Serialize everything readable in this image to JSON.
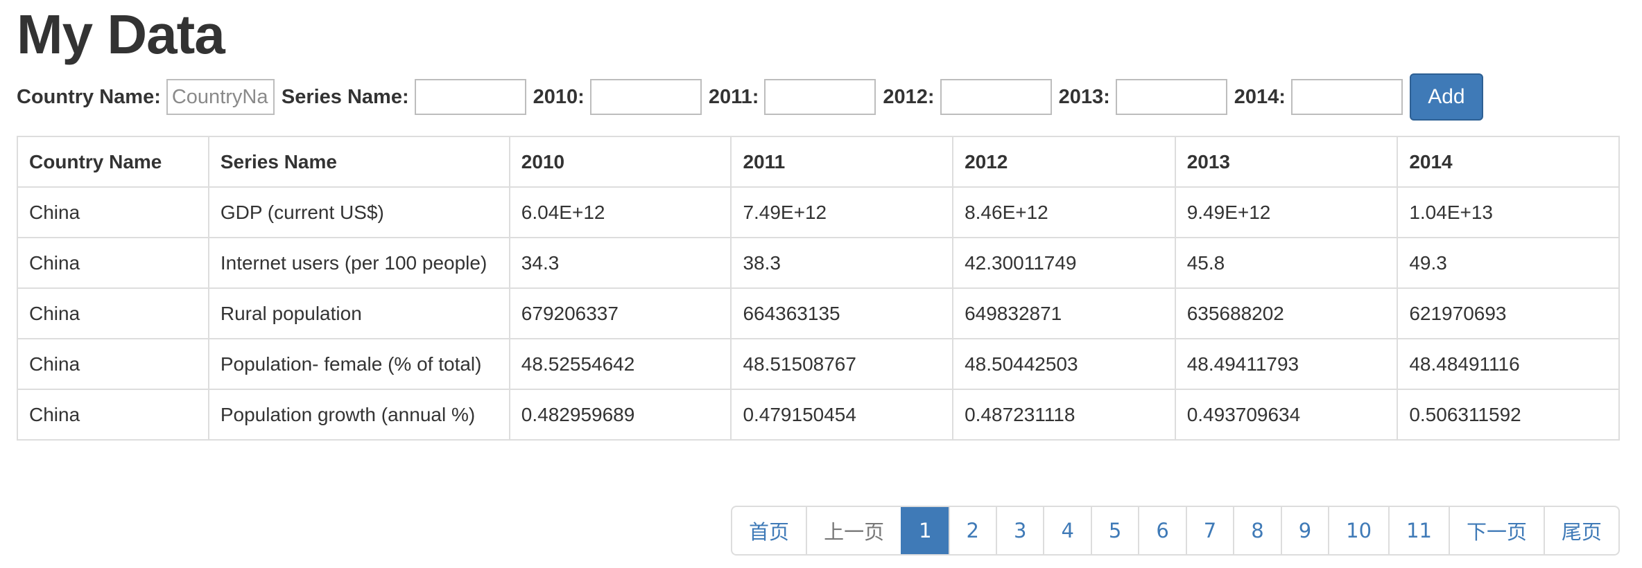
{
  "page": {
    "title": "My Data"
  },
  "form": {
    "fields": [
      {
        "label": "Country Name:",
        "placeholder": "CountryName",
        "value": ""
      },
      {
        "label": "Series Name:",
        "placeholder": "",
        "value": ""
      },
      {
        "label": "2010:",
        "placeholder": "",
        "value": ""
      },
      {
        "label": "2011:",
        "placeholder": "",
        "value": ""
      },
      {
        "label": "2012:",
        "placeholder": "",
        "value": ""
      },
      {
        "label": "2013:",
        "placeholder": "",
        "value": ""
      },
      {
        "label": "2014:",
        "placeholder": "",
        "value": ""
      }
    ],
    "add_label": "Add"
  },
  "table": {
    "headers": [
      "Country Name",
      "Series Name",
      "2010",
      "2011",
      "2012",
      "2013",
      "2014"
    ],
    "rows": [
      [
        "China",
        "GDP (current US$)",
        "6.04E+12",
        "7.49E+12",
        "8.46E+12",
        "9.49E+12",
        "1.04E+13"
      ],
      [
        "China",
        "Internet users (per 100 people)",
        "34.3",
        "38.3",
        "42.30011749",
        "45.8",
        "49.3"
      ],
      [
        "China",
        "Rural population",
        "679206337",
        "664363135",
        "649832871",
        "635688202",
        "621970693"
      ],
      [
        "China",
        "Population- female (% of total)",
        "48.52554642",
        "48.51508767",
        "48.50442503",
        "48.49411793",
        "48.48491116"
      ],
      [
        "China",
        "Population growth (annual %)",
        "0.482959689",
        "0.479150454",
        "0.487231118",
        "0.493709634",
        "0.506311592"
      ]
    ]
  },
  "pagination": {
    "first": "首页",
    "prev": "上一页",
    "pages": [
      "1",
      "2",
      "3",
      "4",
      "5",
      "6",
      "7",
      "8",
      "9",
      "10",
      "11"
    ],
    "current": "1",
    "next": "下一页",
    "last": "尾页"
  },
  "colors": {
    "accent": "#3f7ab7",
    "border": "#dddddd",
    "text": "#333333"
  }
}
